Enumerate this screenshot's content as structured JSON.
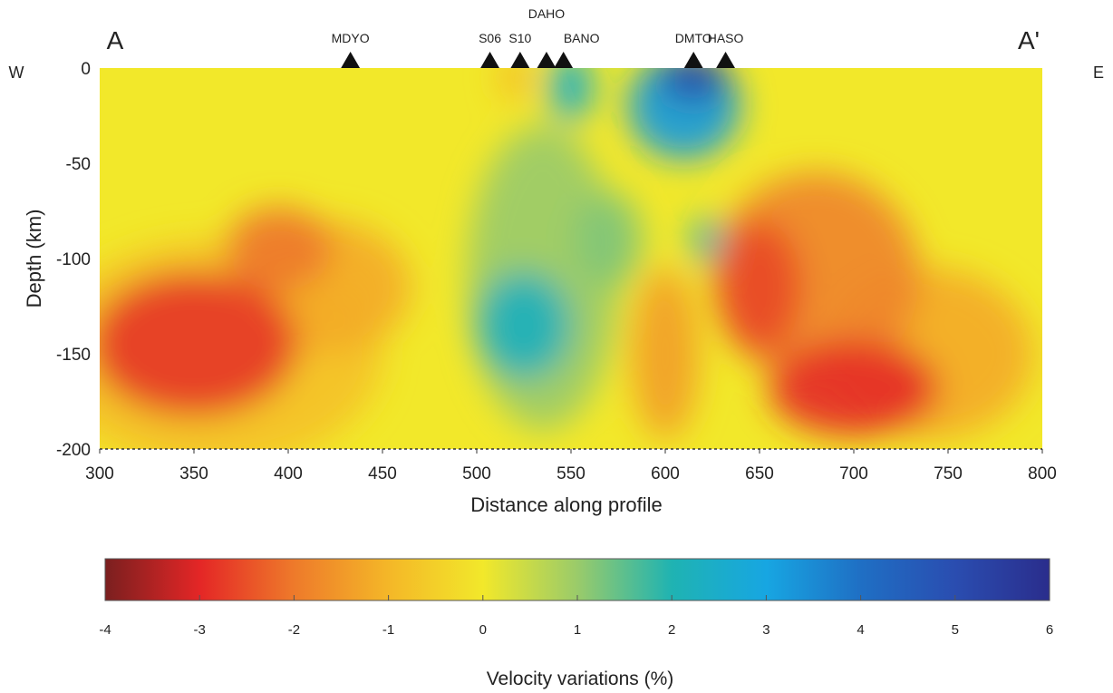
{
  "chart_data": {
    "type": "heatmap",
    "title": "",
    "profile_start_label": "A",
    "profile_end_label": "A'",
    "west_label": "W",
    "east_label": "E",
    "xlabel": "Distance along profile",
    "ylabel": "Depth (km)",
    "xlim": [
      300,
      800
    ],
    "ylim": [
      -200,
      0
    ],
    "x_ticks": [
      300,
      350,
      400,
      450,
      500,
      550,
      600,
      650,
      700,
      750,
      800
    ],
    "y_ticks": [
      0,
      -50,
      -100,
      -150,
      -200
    ],
    "stations": [
      {
        "name": "MDYO",
        "x": 433
      },
      {
        "name": "S06",
        "x": 507
      },
      {
        "name": "S10",
        "x": 523
      },
      {
        "name": "DAHO",
        "x": 537
      },
      {
        "name": "BANO",
        "x": 546
      },
      {
        "name": "DMTO",
        "x": 615
      },
      {
        "name": "HASO",
        "x": 632
      }
    ],
    "colorbar": {
      "label": "Velocity variations (%)",
      "range": [
        -4,
        6
      ],
      "ticks": [
        -4,
        -3,
        -2,
        -1,
        0,
        1,
        2,
        3,
        4,
        5,
        6
      ],
      "colors": [
        {
          "v": -4,
          "c": "#7a1f1f"
        },
        {
          "v": -3,
          "c": "#e42626"
        },
        {
          "v": -2,
          "c": "#ee7a2a"
        },
        {
          "v": -1,
          "c": "#f4b728"
        },
        {
          "v": 0,
          "c": "#f2e82a"
        },
        {
          "v": 1,
          "c": "#9acb6a"
        },
        {
          "v": 2,
          "c": "#1fb3b2"
        },
        {
          "v": 3,
          "c": "#17a6e2"
        },
        {
          "v": 4,
          "c": "#1f6fc4"
        },
        {
          "v": 5,
          "c": "#2a4db0"
        },
        {
          "v": 6,
          "c": "#2a2d8c"
        }
      ]
    },
    "anomalies": [
      {
        "x": 350,
        "depth": -145,
        "v": -2.8,
        "rx": 55,
        "ry": 38
      },
      {
        "x": 395,
        "depth": -95,
        "v": -2.0,
        "rx": 28,
        "ry": 22
      },
      {
        "x": 420,
        "depth": -115,
        "v": -1.2,
        "rx": 45,
        "ry": 35
      },
      {
        "x": 360,
        "depth": -150,
        "v": -0.8,
        "rx": 90,
        "ry": 60
      },
      {
        "x": 520,
        "depth": -5,
        "v": -1.0,
        "rx": 8,
        "ry": 12
      },
      {
        "x": 525,
        "depth": -135,
        "v": 2.2,
        "rx": 25,
        "ry": 28
      },
      {
        "x": 535,
        "depth": -110,
        "v": 1.0,
        "rx": 40,
        "ry": 80
      },
      {
        "x": 550,
        "depth": -10,
        "v": 2.5,
        "rx": 12,
        "ry": 18
      },
      {
        "x": 570,
        "depth": -90,
        "v": 1.2,
        "rx": 18,
        "ry": 25
      },
      {
        "x": 610,
        "depth": -20,
        "v": 3.2,
        "rx": 30,
        "ry": 28
      },
      {
        "x": 615,
        "depth": -5,
        "v": 5.2,
        "rx": 18,
        "ry": 12
      },
      {
        "x": 622,
        "depth": -90,
        "v": 2.2,
        "rx": 8,
        "ry": 12
      },
      {
        "x": 650,
        "depth": -115,
        "v": -2.6,
        "rx": 22,
        "ry": 35
      },
      {
        "x": 680,
        "depth": -110,
        "v": -1.8,
        "rx": 55,
        "ry": 55
      },
      {
        "x": 700,
        "depth": -168,
        "v": -2.9,
        "rx": 45,
        "ry": 25
      },
      {
        "x": 740,
        "depth": -150,
        "v": -1.2,
        "rx": 55,
        "ry": 45
      },
      {
        "x": 600,
        "depth": -150,
        "v": -1.4,
        "rx": 18,
        "ry": 45
      }
    ]
  }
}
